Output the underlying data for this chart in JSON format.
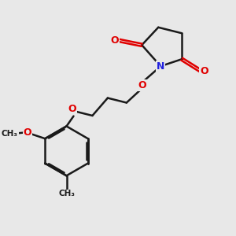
{
  "background_color": "#e8e8e8",
  "bond_color": "#1a1a1a",
  "atom_colors": {
    "O": "#e00000",
    "N": "#2020e0",
    "C": "#1a1a1a"
  },
  "bond_width": 1.8,
  "dbo": 0.06,
  "figsize": [
    3.0,
    3.0
  ],
  "dpi": 100,
  "xlim": [
    0,
    10
  ],
  "ylim": [
    0,
    10
  ]
}
